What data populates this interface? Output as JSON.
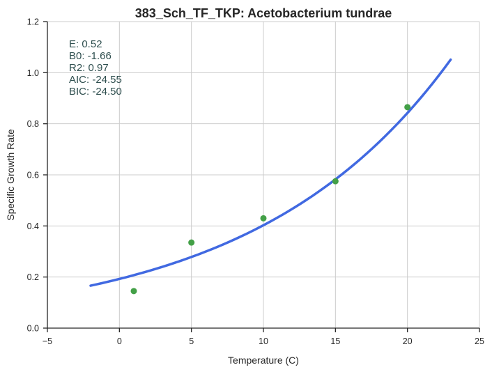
{
  "chart_data": {
    "type": "scatter",
    "title": "383_Sch_TF_TKP: Acetobacterium tundrae",
    "xlabel": "Temperature (C)",
    "ylabel": "Specific Growth Rate",
    "xlim": [
      -5,
      25
    ],
    "ylim": [
      0,
      1.2
    ],
    "xticks": [
      -5,
      0,
      5,
      10,
      15,
      20,
      25
    ],
    "yticks": [
      0.0,
      0.2,
      0.4,
      0.6,
      0.8,
      1.0,
      1.2
    ],
    "xtick_labels": [
      "−5",
      "0",
      "5",
      "10",
      "15",
      "20",
      "25"
    ],
    "ytick_labels": [
      "0.0",
      "0.2",
      "0.4",
      "0.6",
      "0.8",
      "1.0",
      "1.2"
    ],
    "grid": true,
    "points": {
      "x": [
        1,
        5,
        10,
        15,
        20
      ],
      "y": [
        0.145,
        0.335,
        0.43,
        0.575,
        0.865
      ],
      "color": "#43a047"
    },
    "fit_line": {
      "x": [
        -2,
        23
      ],
      "y0": 0.1925,
      "rate": 0.0738,
      "color": "#4169e1"
    },
    "annotations": [
      "E:  0.52",
      "B0:  -1.66",
      "R2:  0.97",
      "AIC: -24.55",
      "BIC: -24.50"
    ],
    "annotation_color": "#2f4f4f"
  }
}
